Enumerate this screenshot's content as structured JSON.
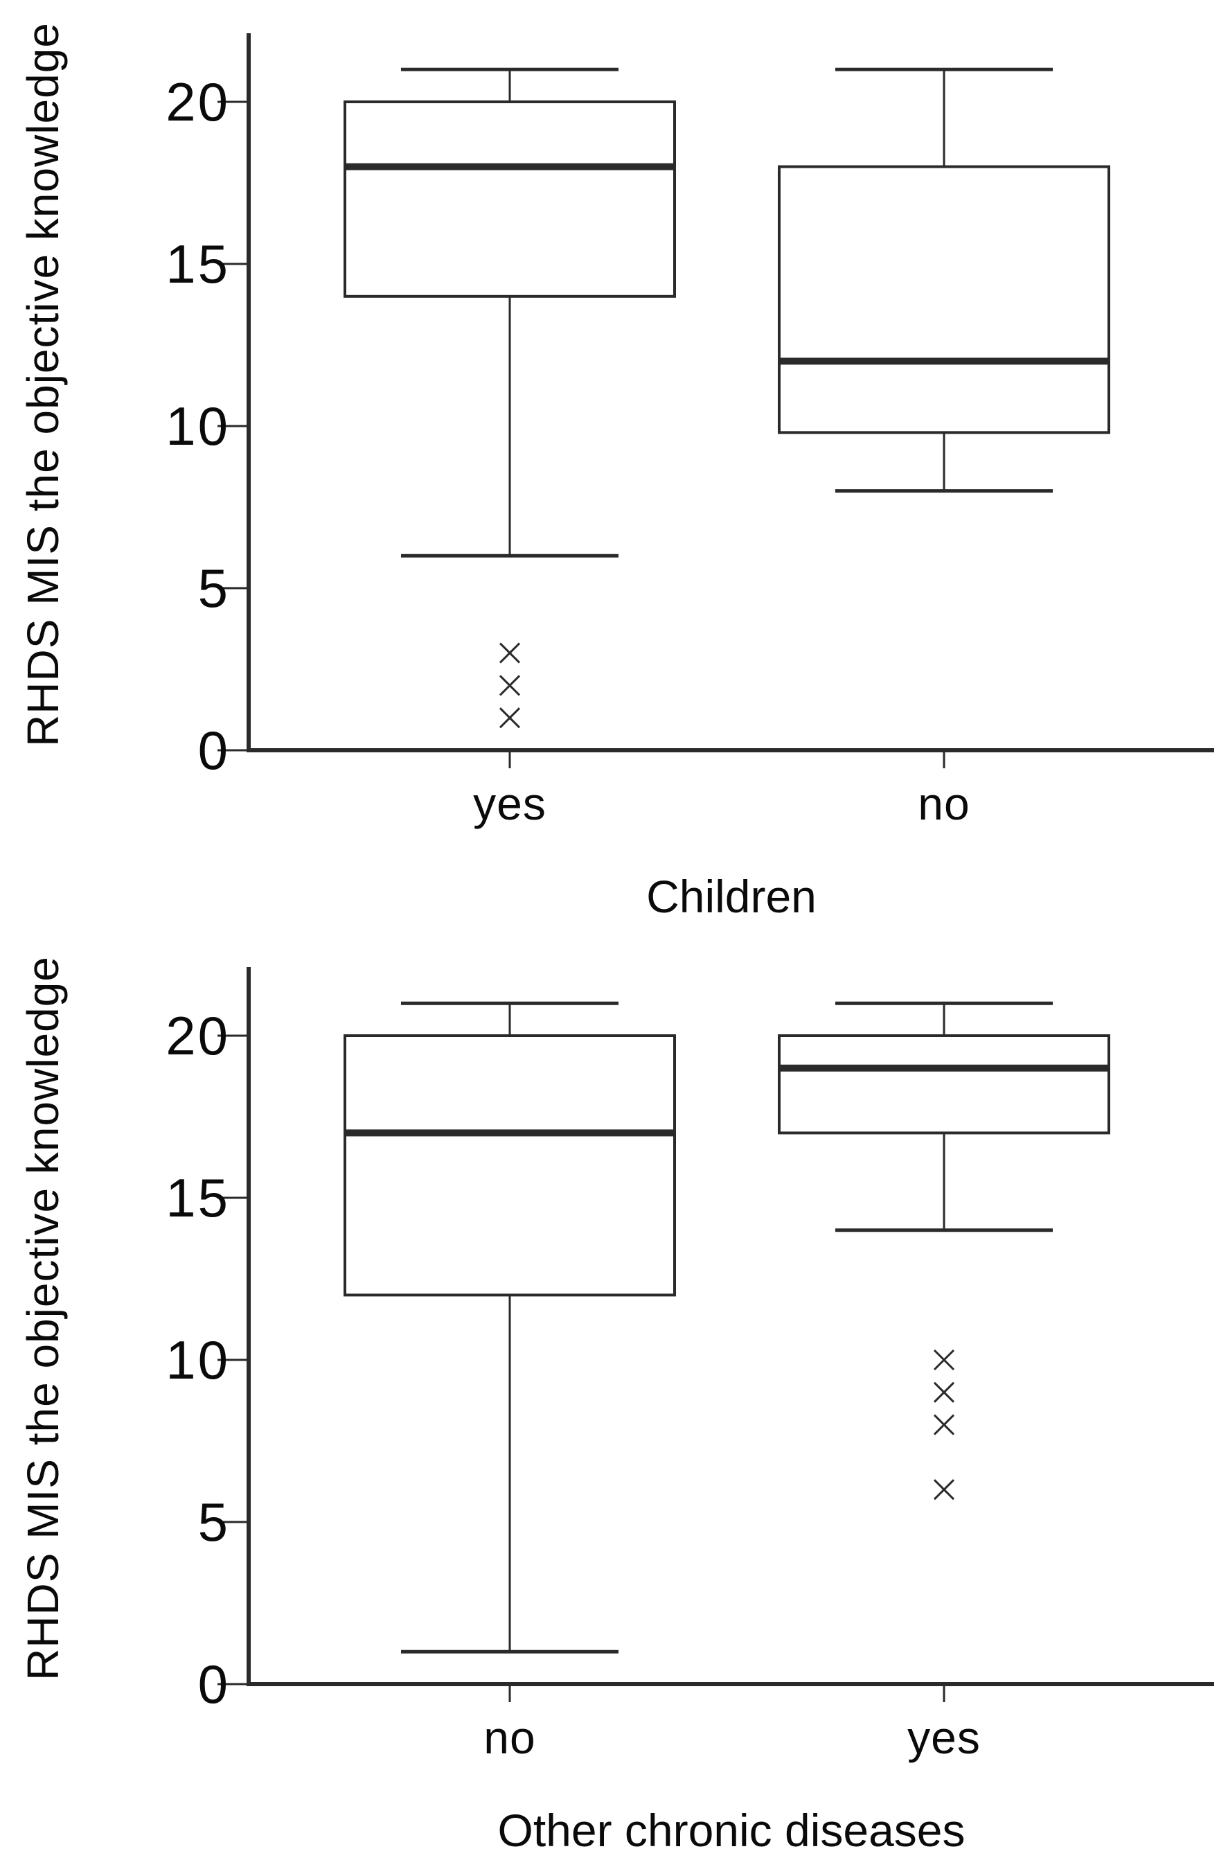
{
  "figure": {
    "background": "#ffffff",
    "text_color": "#0a0a0a",
    "line_color": "#2a2a2a"
  },
  "chart_data": [
    {
      "type": "box",
      "title": "Children",
      "ylabel": "RHDS MIS the objective knowledge",
      "xlabel": "Children",
      "categories": [
        "yes",
        "no"
      ],
      "yticks": [
        0,
        5,
        10,
        15,
        20
      ],
      "ylim": [
        0,
        22
      ],
      "grid": false,
      "legend": false,
      "outlier_marker": "x",
      "series": [
        {
          "category": "yes",
          "whisker_low": 6,
          "q1": 14,
          "median": 18,
          "q3": 20,
          "whisker_high": 21,
          "outliers": [
            3,
            2,
            1
          ]
        },
        {
          "category": "no",
          "whisker_low": 8,
          "q1": 9.8,
          "median": 12,
          "q3": 18,
          "whisker_high": 21,
          "outliers": []
        }
      ]
    },
    {
      "type": "box",
      "title": "Other chronic diseases",
      "ylabel": "RHDS MIS the objective knowledge",
      "xlabel": "Other chronic diseases",
      "categories": [
        "no",
        "yes"
      ],
      "yticks": [
        0,
        5,
        10,
        15,
        20
      ],
      "ylim": [
        0,
        22
      ],
      "grid": false,
      "legend": false,
      "outlier_marker": "x",
      "series": [
        {
          "category": "no",
          "whisker_low": 1,
          "q1": 12,
          "median": 17,
          "q3": 20,
          "whisker_high": 21,
          "outliers": []
        },
        {
          "category": "yes",
          "whisker_low": 14,
          "q1": 17,
          "median": 19,
          "q3": 20,
          "whisker_high": 21,
          "outliers": [
            10,
            9,
            8,
            6
          ]
        }
      ]
    }
  ]
}
